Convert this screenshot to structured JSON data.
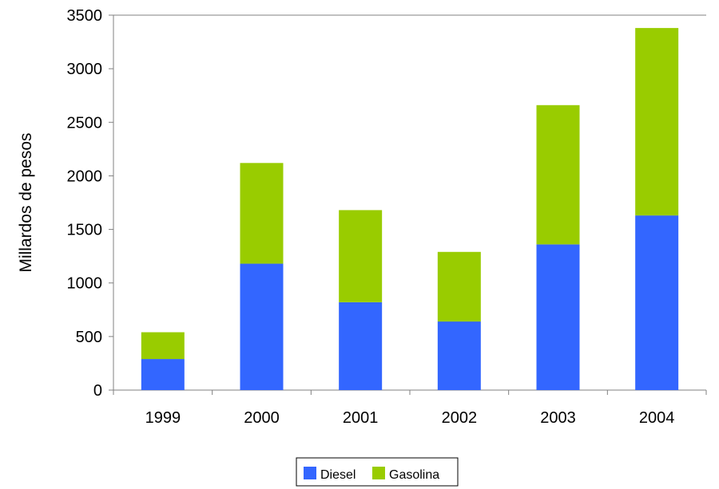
{
  "chart_data": {
    "type": "bar",
    "stacked": true,
    "categories": [
      "1999",
      "2000",
      "2001",
      "2002",
      "2003",
      "2004"
    ],
    "series": [
      {
        "name": "Diesel",
        "color": "#3366ff",
        "values": [
          290,
          1180,
          820,
          640,
          1360,
          1630
        ]
      },
      {
        "name": "Gasolina",
        "color": "#99cc00",
        "values": [
          250,
          940,
          860,
          650,
          1300,
          1750
        ]
      }
    ],
    "ylabel": "Millardos de pesos",
    "xlabel": "",
    "title": "",
    "ylim": [
      0,
      3500
    ],
    "yticks": [
      0,
      500,
      1000,
      1500,
      2000,
      2500,
      3000,
      3500
    ],
    "grid": false,
    "legend": "bottom"
  }
}
